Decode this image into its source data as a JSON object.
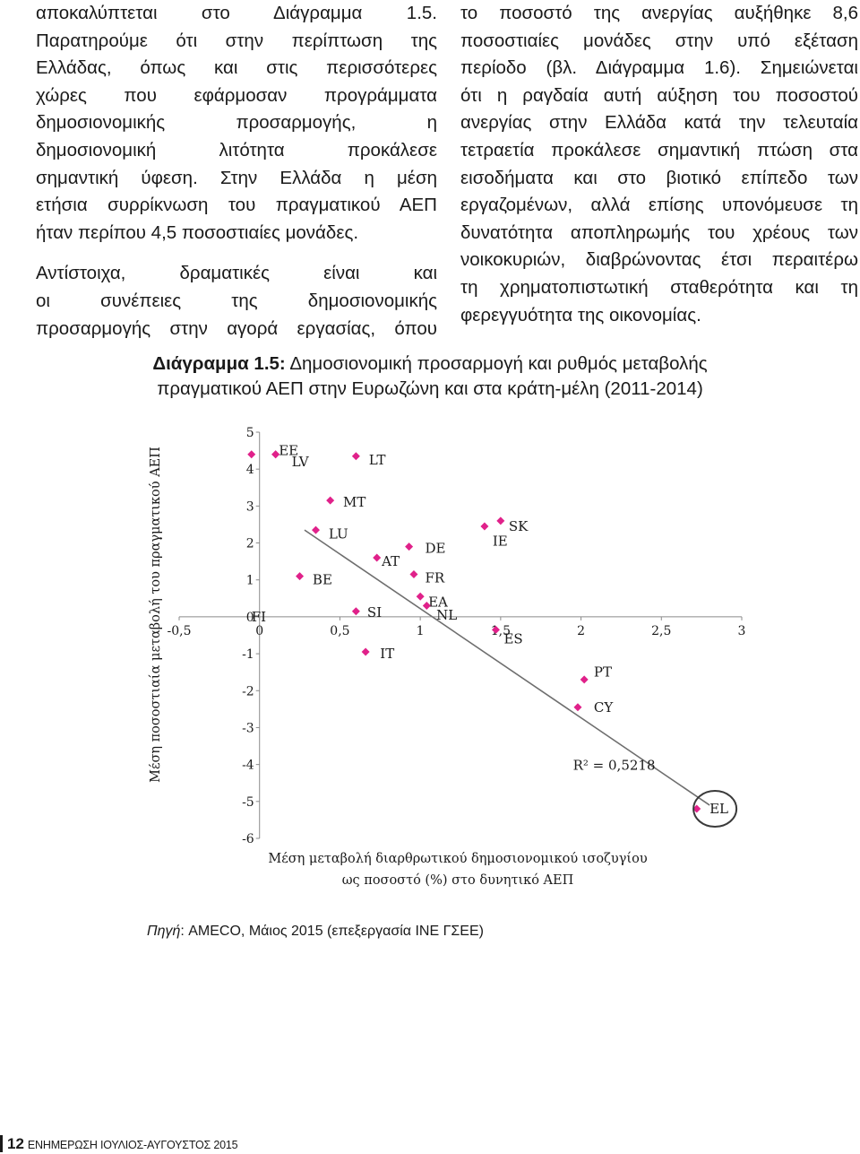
{
  "left_column": {
    "paragraph1_lines": [
      "αποκαλύπτεται στο Διάγραμμα 1.5.",
      "Παρατηρούμε ότι στην περίπτωση της",
      "Ελλάδας, όπως και στις περισσότερες",
      "χώρες που εφάρμοσαν προγράμματα",
      "δημοσιονομικής προσαρμογής, η",
      "δημοσιονομική λιτότητα προκάλεσε",
      "σημαντική ύφεση. Στην Ελλάδα η μέση",
      "ετήσια συρρίκνωση του πραγματικού ΑΕΠ",
      "ήταν περίπου 4,5 ποσοστιαίες μονάδες."
    ],
    "paragraph2_lines": [
      "Αντίστοιχα, δραματικές είναι και",
      "οι συνέπειες της δημοσιονομικής",
      "προσαρμογής στην αγορά εργασίας, όπου"
    ]
  },
  "right_column": {
    "lines": [
      "το ποσοστό της ανεργίας αυξήθηκε 8,6",
      "ποσοστιαίες μονάδες στην υπό εξέταση",
      "περίοδο (βλ. Διάγραμμα 1.6). Σημειώνεται",
      "ότι η ραγδαία αυτή αύξηση του ποσοστού",
      "ανεργίας στην Ελλάδα κατά την τελευταία",
      "τετραετία προκάλεσε σημαντική πτώση στα",
      "εισοδήματα και στο βιοτικό επίπεδο των",
      "εργαζομένων, αλλά επίσης υπονόμευσε τη",
      "δυνατότητα αποπληρωμής του χρέους των",
      "νοικοκυριών, διαβρώνοντας έτσι περαιτέρω",
      "τη χρηματοπιστωτική σταθερότητα και τη",
      "φερεγγυότητα της οικονομίας."
    ]
  },
  "figure_caption": {
    "label": "Διάγραμμα 1.5:",
    "line1_rest": " Δημοσιονομική προσαρμογή και ρυθμός μεταβολής",
    "line2": "πραγματικού ΑΕΠ στην Ευρωζώνη και στα κράτη-μέλη (2011-2014)"
  },
  "chart_data": {
    "type": "scatter",
    "title": "",
    "xlabel_lines": [
      "Μέση μεταβολή διαρθρωτικού δημοσιονομικού ισοζυγίου",
      "ως ποσοστό (%) στο δυνητικό ΑΕΠ"
    ],
    "ylabel": "Μέση ποσοστιαία μεταβολή του πραγματικού ΑΕΠ",
    "xlim": [
      -0.5,
      3
    ],
    "ylim": [
      -6,
      5
    ],
    "x_ticks": [
      -0.5,
      0,
      0.5,
      1,
      1.5,
      2,
      2.5,
      3
    ],
    "x_tick_labels": [
      "-0,5",
      "0",
      "0,5",
      "1",
      "1,5",
      "2",
      "2,5",
      "3"
    ],
    "y_ticks": [
      5,
      4,
      3,
      2,
      1,
      0,
      -1,
      -2,
      -3,
      -4,
      -5,
      -6
    ],
    "y_tick_labels": [
      "5",
      "4",
      "3",
      "2",
      "1",
      "0",
      "-1",
      "-2",
      "-3",
      "-4",
      "-5",
      "-6"
    ],
    "grid": false,
    "marker_color": "#e0218a",
    "points": [
      {
        "label": "FI",
        "x": -0.05,
        "y": 4.4,
        "label_x": -0.05,
        "label_y": 0.0,
        "highlight": false
      },
      {
        "label": "EE",
        "x": 0.1,
        "y": 4.4,
        "label_x": 0.12,
        "label_y": 4.5,
        "highlight": false
      },
      {
        "label": "LV",
        "x": 0.1,
        "y": 4.4,
        "label_x": 0.2,
        "label_y": 4.2,
        "highlight": false
      },
      {
        "label": "LT",
        "x": 0.6,
        "y": 4.35,
        "label_x": 0.68,
        "label_y": 4.25,
        "highlight": false
      },
      {
        "label": "MT",
        "x": 0.44,
        "y": 3.15,
        "label_x": 0.52,
        "label_y": 3.1,
        "highlight": false
      },
      {
        "label": "LU",
        "x": 0.35,
        "y": 2.35,
        "label_x": 0.43,
        "label_y": 2.25,
        "highlight": false
      },
      {
        "label": "BE",
        "x": 0.25,
        "y": 1.1,
        "label_x": 0.33,
        "label_y": 1.0,
        "highlight": false
      },
      {
        "label": "AT",
        "x": 0.73,
        "y": 1.6,
        "label_x": 0.76,
        "label_y": 1.5,
        "highlight": false
      },
      {
        "label": "DE",
        "x": 0.93,
        "y": 1.9,
        "label_x": 1.03,
        "label_y": 1.85,
        "highlight": false
      },
      {
        "label": "FR",
        "x": 0.96,
        "y": 1.15,
        "label_x": 1.03,
        "label_y": 1.05,
        "highlight": false
      },
      {
        "label": "EA",
        "x": 1.0,
        "y": 0.55,
        "label_x": 1.05,
        "label_y": 0.4,
        "highlight": false
      },
      {
        "label": "NL",
        "x": 1.04,
        "y": 0.3,
        "label_x": 1.1,
        "label_y": 0.05,
        "highlight": false
      },
      {
        "label": "SI",
        "x": 0.6,
        "y": 0.15,
        "label_x": 0.67,
        "label_y": 0.12,
        "highlight": false
      },
      {
        "label": "IT",
        "x": 0.66,
        "y": -0.95,
        "label_x": 0.75,
        "label_y": -1.0,
        "highlight": false
      },
      {
        "label": "IE",
        "x": 1.4,
        "y": 2.45,
        "label_x": 1.45,
        "label_y": 2.05,
        "highlight": false
      },
      {
        "label": "SK",
        "x": 1.5,
        "y": 2.6,
        "label_x": 1.55,
        "label_y": 2.45,
        "highlight": false
      },
      {
        "label": "ES",
        "x": 1.47,
        "y": -0.35,
        "label_x": 1.52,
        "label_y": -0.6,
        "highlight": false
      },
      {
        "label": "PT",
        "x": 2.02,
        "y": -1.7,
        "label_x": 2.08,
        "label_y": -1.5,
        "highlight": false
      },
      {
        "label": "CY",
        "x": 1.98,
        "y": -2.45,
        "label_x": 2.08,
        "label_y": -2.45,
        "highlight": false
      },
      {
        "label": "EL",
        "x": 2.72,
        "y": -5.2,
        "label_x": 2.8,
        "label_y": -5.2,
        "highlight": true
      }
    ],
    "trendline": {
      "x0": 0.28,
      "y0": 2.35,
      "x1": 2.8,
      "y1": -5.1
    },
    "r_squared_label": "R² = 0,5218"
  },
  "source_note": {
    "label": "Πηγή",
    "text": ": AMECO, Μάιος 2015 (επεξεργασία ΙΝΕ ΓΣΕΕ)"
  },
  "footer": {
    "page_number": "12",
    "title": "ΕΝΗΜΕΡΩΣΗ ΙΟΥΛΙΟΣ-ΑΥΓΟΥΣΤΟΣ 2015"
  }
}
